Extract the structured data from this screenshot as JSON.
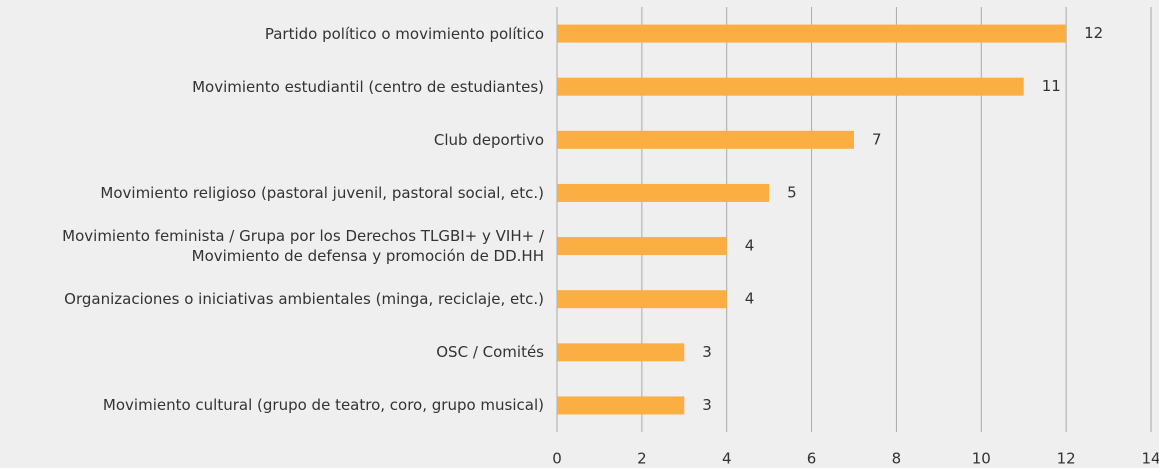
{
  "chart_data": {
    "type": "bar",
    "orientation": "horizontal",
    "categories": [
      "Partido político o movimiento político",
      "Movimiento estudiantil (centro de estudiantes)",
      "Club deportivo",
      "Movimiento religioso (pastoral juvenil, pastoral social, etc.)",
      "Movimiento feminista / Grupa por los Derechos TLGBI+ y VIH+ /\nMovimiento de defensa y promoción de DD.HH",
      "Organizaciones o iniciativas ambientales (minga, reciclaje, etc.)",
      "OSC / Comités",
      "Movimiento cultural (grupo de teatro, coro, grupo musical)"
    ],
    "values": [
      12,
      11,
      7,
      5,
      4,
      4,
      3,
      3
    ],
    "color": "#fbae42",
    "xlim": [
      0,
      14
    ],
    "xticks": [
      0,
      2,
      4,
      6,
      8,
      10,
      12,
      14
    ],
    "grid": true
  }
}
